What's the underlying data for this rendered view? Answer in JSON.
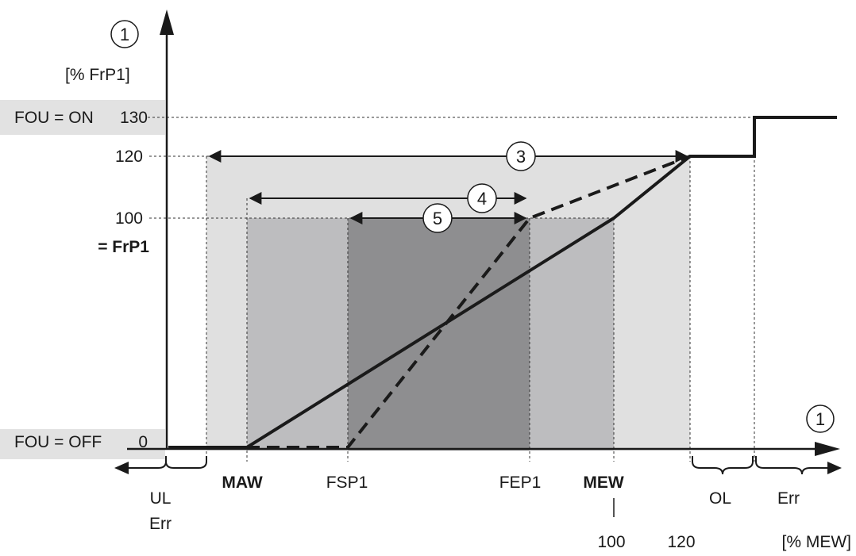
{
  "y_axis": {
    "marker": "1",
    "unit": "[% FrP1]",
    "ticks": [
      "130",
      "120",
      "100",
      "0"
    ],
    "frp1_label": "= FrP1"
  },
  "fou_labels": {
    "on": "FOU = ON",
    "off": "FOU = OFF"
  },
  "x_axis": {
    "marker": "1",
    "unit": "[% MEW]",
    "labels": {
      "maw": "MAW",
      "fsp1": "FSP1",
      "fep1": "FEP1",
      "mew": "MEW",
      "mew_value": "100",
      "val_120": "120",
      "ul": "UL",
      "ul_err": "Err",
      "ol": "OL",
      "err": "Err"
    }
  },
  "ranges": {
    "r3": "3",
    "r4": "4",
    "r5": "5"
  },
  "colors": {
    "zone_outer": "#e0e0e0",
    "zone_middle": "#bdbdbf",
    "zone_inner": "#8e8e90",
    "fou_band": "#e2e2e2",
    "line": "#1a1a1a"
  },
  "chart_data": {
    "type": "line",
    "xlabel": "[% MEW]",
    "ylabel": "[% FrP1]",
    "series": [
      {
        "style": "solid",
        "points": [
          [
            "min",
            0
          ],
          [
            "MAW",
            0
          ],
          [
            "MEW",
            100
          ],
          [
            "120",
            120
          ],
          [
            "OL end",
            120
          ],
          [
            "OL end",
            130
          ],
          [
            "max",
            130
          ]
        ]
      },
      {
        "style": "dashed",
        "points": [
          [
            "MAW",
            0
          ],
          [
            "FSP1",
            0
          ],
          [
            "FEP1",
            100
          ],
          [
            "120",
            120
          ]
        ]
      }
    ]
  }
}
